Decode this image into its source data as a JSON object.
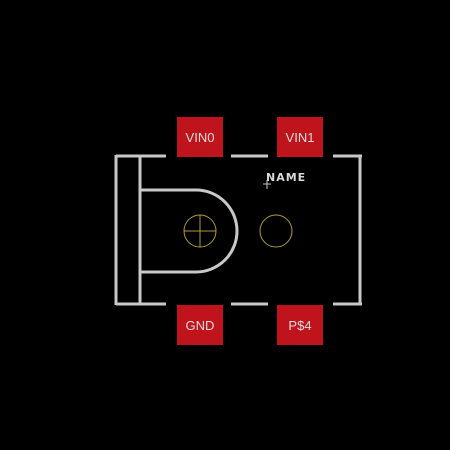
{
  "colors": {
    "background": "#000000",
    "pad_fill": "#c0141c",
    "silkscreen": "#c8c8c8",
    "drill": "#b09a3a",
    "pad_text": "#dcdcdc",
    "name_text": "#d8d8d8"
  },
  "pads": [
    {
      "label": "VIN0"
    },
    {
      "label": "VIN1"
    },
    {
      "label": "GND"
    },
    {
      "label": "P$4"
    }
  ],
  "name_label": "NAME",
  "icons": {
    "drill_hole_left": "drill-hole-crosshair",
    "drill_hole_right": "drill-hole",
    "origin_marker": "origin-cross"
  }
}
